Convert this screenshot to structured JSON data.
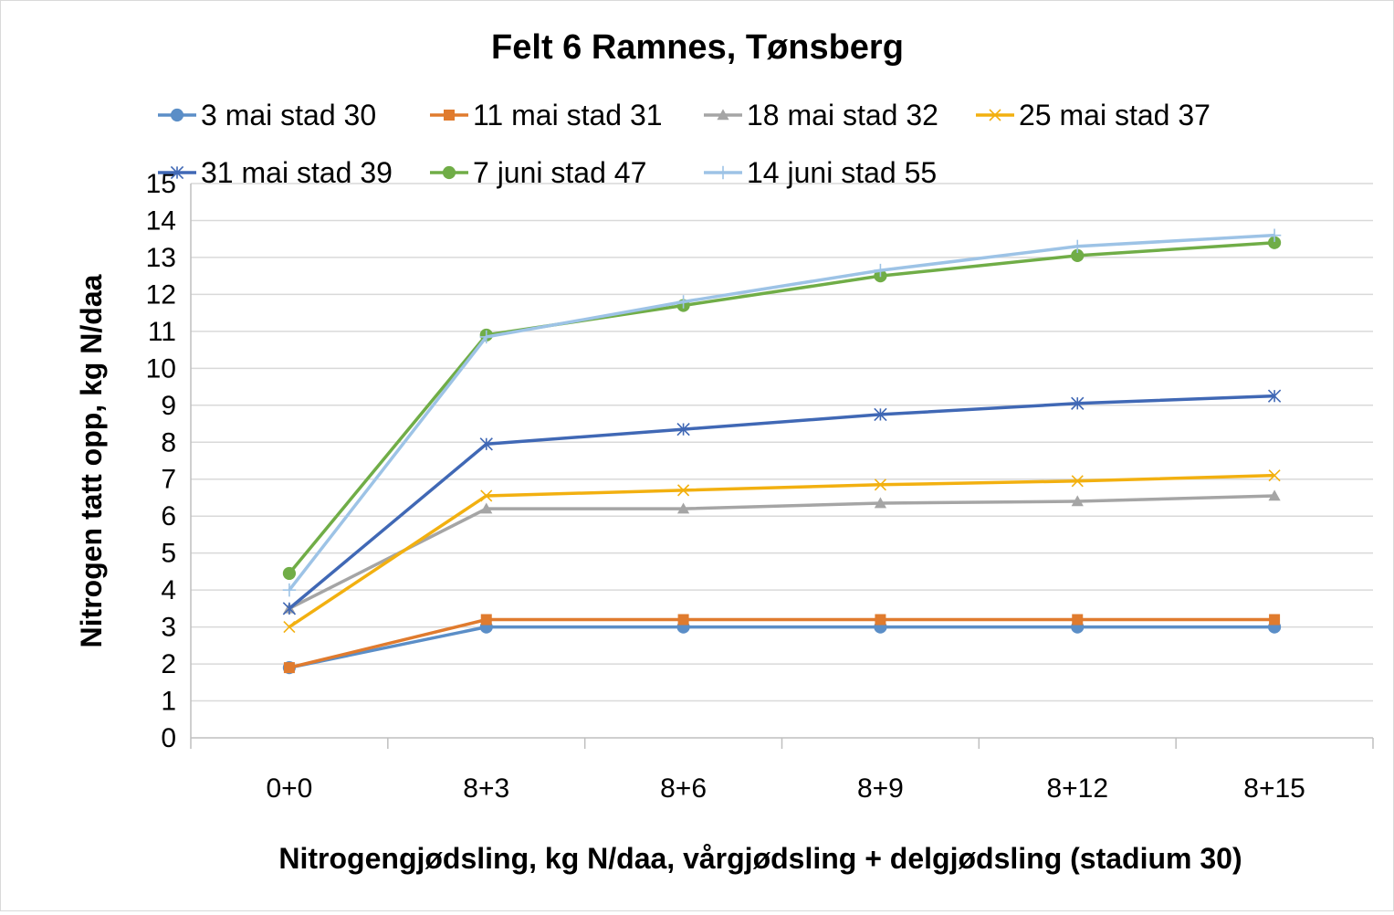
{
  "chart_data": {
    "type": "line",
    "title": "Felt 6 Ramnes, Tønsberg",
    "xlabel": "Nitrogengjødsling, kg N/daa, vårgjødsling + delgjødsling (stadium 30)",
    "ylabel": "Nitrogen tatt opp, kg N/daa",
    "categories": [
      "0+0",
      "8+3",
      "8+6",
      "8+9",
      "8+12",
      "8+15"
    ],
    "ylim": [
      0,
      15
    ],
    "yticks": [
      0,
      1,
      2,
      3,
      4,
      5,
      6,
      7,
      8,
      9,
      10,
      11,
      12,
      13,
      14,
      15
    ],
    "grid": true,
    "legend_position": "top",
    "series": [
      {
        "name": "3 mai stad 30",
        "color": "#5b8ec7",
        "marker": "circle",
        "values": [
          1.9,
          3.0,
          3.0,
          3.0,
          3.0,
          3.0
        ]
      },
      {
        "name": "11 mai stad 31",
        "color": "#e07b2e",
        "marker": "square",
        "values": [
          1.9,
          3.2,
          3.2,
          3.2,
          3.2,
          3.2
        ]
      },
      {
        "name": "18 mai stad 32",
        "color": "#a5a5a5",
        "marker": "triangle",
        "values": [
          3.5,
          6.2,
          6.2,
          6.35,
          6.4,
          6.55
        ]
      },
      {
        "name": "25 mai stad 37",
        "color": "#f2b010",
        "marker": "x",
        "values": [
          3.0,
          6.55,
          6.7,
          6.85,
          6.95,
          7.1
        ]
      },
      {
        "name": "31 mai stad 39",
        "color": "#4068b5",
        "marker": "star",
        "values": [
          3.5,
          7.95,
          8.35,
          8.75,
          9.05,
          9.25
        ]
      },
      {
        "name": "7 juni stad 47",
        "color": "#70ad47",
        "marker": "circle",
        "values": [
          4.45,
          10.9,
          11.7,
          12.5,
          13.05,
          13.4
        ]
      },
      {
        "name": "14 juni stad 55",
        "color": "#9dc3e6",
        "marker": "plus",
        "values": [
          4.0,
          10.85,
          11.8,
          12.65,
          13.3,
          13.6
        ]
      }
    ]
  }
}
